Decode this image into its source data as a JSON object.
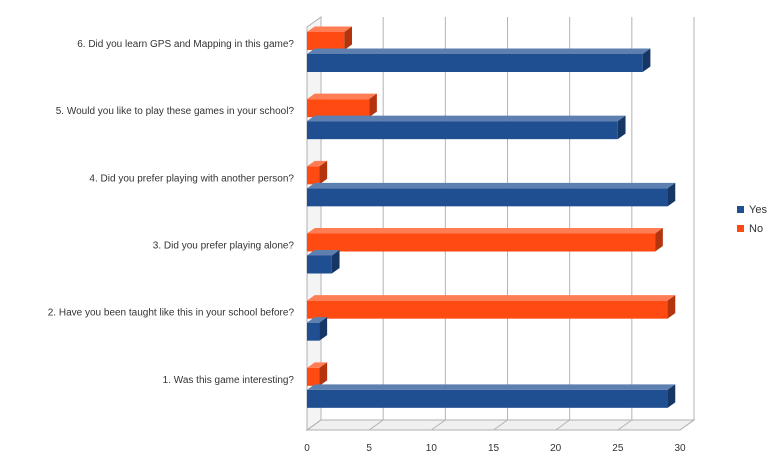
{
  "chart_data": {
    "type": "bar",
    "orientation": "horizontal",
    "style": "3d",
    "title": "",
    "xlabel": "",
    "ylabel": "",
    "categories": [
      "6. Did you learn GPS and Mapping in this game?",
      "5. Would you like to play these games in your school?",
      "4. Did you prefer playing with another person?",
      "3. Did you prefer playing alone?",
      "2. Have you been taught like this in your school before?",
      "1. Was this game interesting?"
    ],
    "series": [
      {
        "name": "Yes",
        "color": "#1f4e91",
        "values": [
          27,
          25,
          29,
          2,
          1,
          29
        ]
      },
      {
        "name": "No",
        "color": "#ff4a12",
        "values": [
          3,
          5,
          1,
          28,
          29,
          1
        ]
      }
    ],
    "xlim": [
      0,
      30
    ],
    "xticks": [
      "0",
      "5",
      "10",
      "15",
      "20",
      "25",
      "30"
    ],
    "grid": true,
    "legend_position": "right"
  }
}
